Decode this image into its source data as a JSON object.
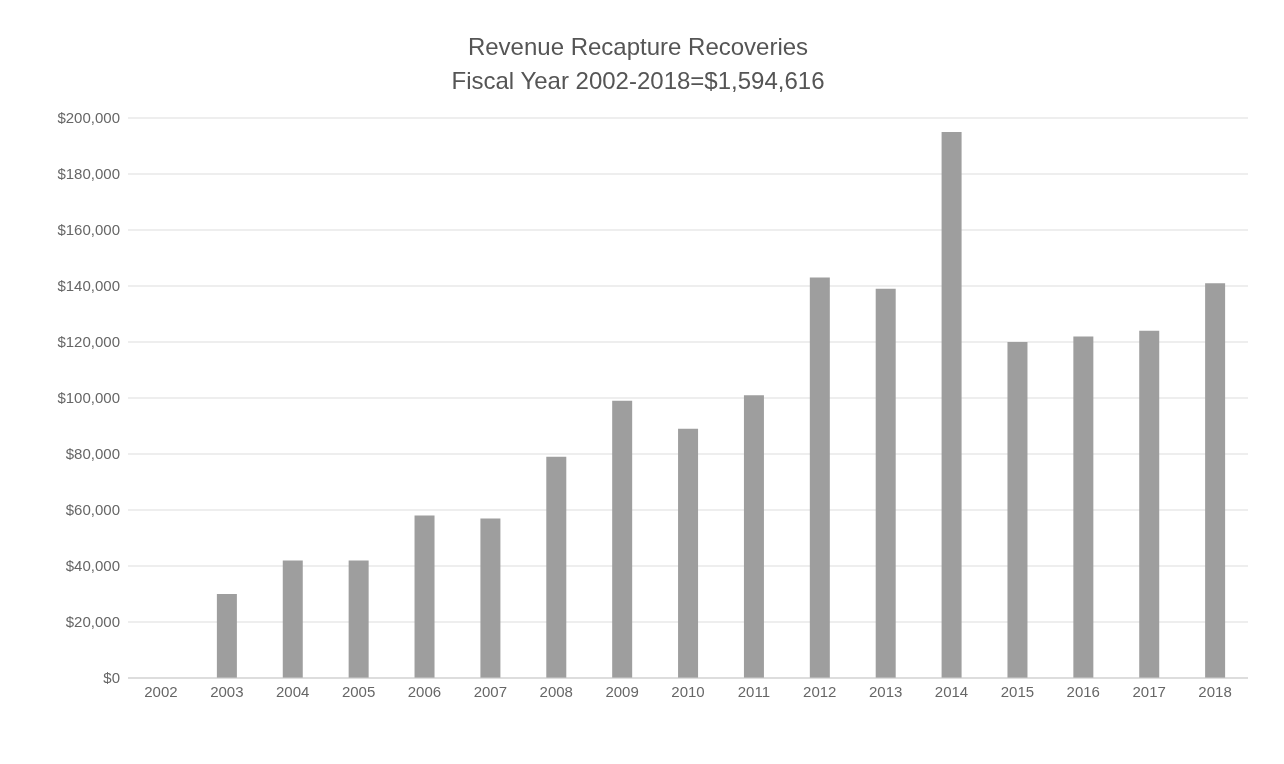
{
  "chart_data": {
    "type": "bar",
    "title": "Revenue Recapture Recoveries",
    "subtitle": "Fiscal Year 2002-2018=$1,594,616",
    "categories": [
      "2002",
      "2003",
      "2004",
      "2005",
      "2006",
      "2007",
      "2008",
      "2009",
      "2010",
      "2011",
      "2012",
      "2013",
      "2014",
      "2015",
      "2016",
      "2017",
      "2018"
    ],
    "values": [
      0,
      30000,
      42000,
      42000,
      58000,
      57000,
      79000,
      99000,
      89000,
      101000,
      143000,
      139000,
      195000,
      120000,
      122000,
      124000,
      141000
    ],
    "color": "#9e9e9e",
    "ylim": [
      0,
      200000
    ],
    "yticks": [
      {
        "value": 0,
        "label": "$0"
      },
      {
        "value": 20000,
        "label": "$20,000"
      },
      {
        "value": 40000,
        "label": "$40,000"
      },
      {
        "value": 60000,
        "label": "$60,000"
      },
      {
        "value": 80000,
        "label": "$80,000"
      },
      {
        "value": 100000,
        "label": "$100,000"
      },
      {
        "value": 120000,
        "label": "$120,000"
      },
      {
        "value": 140000,
        "label": "$140,000"
      },
      {
        "value": 160000,
        "label": "$160,000"
      },
      {
        "value": 180000,
        "label": "$180,000"
      },
      {
        "value": 200000,
        "label": "$200,000"
      }
    ],
    "grid": "y"
  }
}
